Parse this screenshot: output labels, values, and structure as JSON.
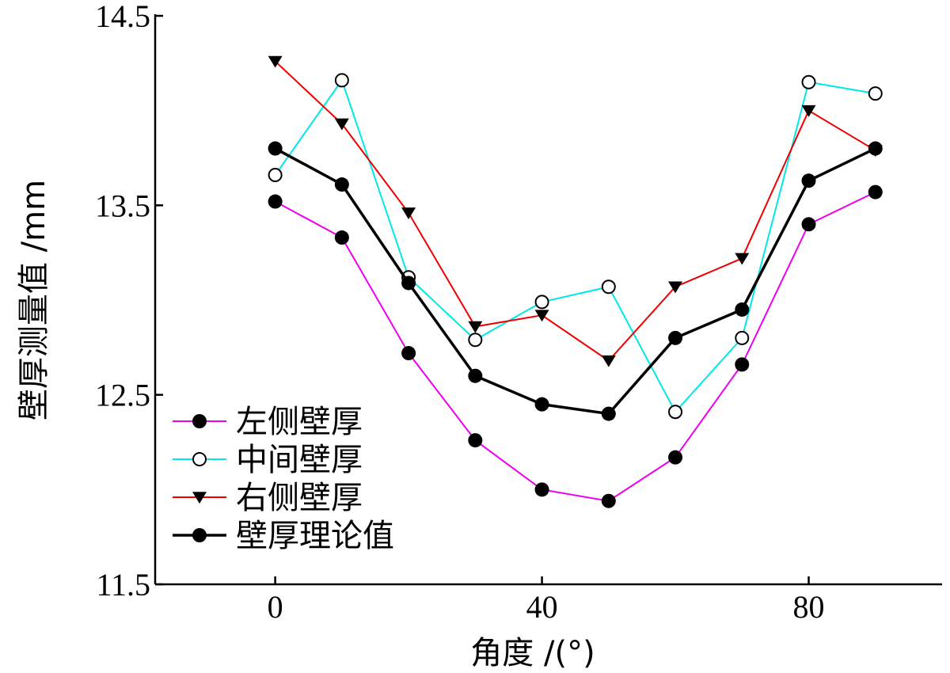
{
  "chart_data": {
    "type": "line",
    "xlabel": "角度 /(°)",
    "ylabel": "壁厚测量值 /mm",
    "xlim": [
      -18,
      100
    ],
    "ylim": [
      11.5,
      14.5
    ],
    "xticks": [
      0,
      40,
      80
    ],
    "xtick_labels": [
      "0",
      "40",
      "80"
    ],
    "yticks": [
      11.5,
      12.5,
      13.5,
      14.5
    ],
    "ytick_labels": [
      "11.5",
      "12.5",
      "13.5",
      "14.5"
    ],
    "x": [
      0,
      10,
      20,
      30,
      40,
      50,
      60,
      70,
      80,
      90
    ],
    "series": [
      {
        "name": "左侧壁厚",
        "color": "#ee00ee",
        "marker": "filled-circle",
        "values": [
          13.52,
          13.33,
          12.72,
          12.26,
          12.0,
          11.94,
          12.17,
          12.66,
          13.4,
          13.57
        ]
      },
      {
        "name": "中间壁厚",
        "color": "#00e8e8",
        "marker": "open-circle",
        "values": [
          13.66,
          14.16,
          13.12,
          12.79,
          12.99,
          13.07,
          12.41,
          12.8,
          14.15,
          14.09
        ]
      },
      {
        "name": "右侧壁厚",
        "color": "#ee0000",
        "marker": "down-triangle",
        "values": [
          14.26,
          13.93,
          13.46,
          12.86,
          12.92,
          12.68,
          13.07,
          13.22,
          14.0,
          13.79
        ]
      },
      {
        "name": "壁厚理论值",
        "color": "#000000",
        "marker": "filled-circle",
        "values": [
          13.8,
          13.61,
          13.09,
          12.6,
          12.45,
          12.4,
          12.8,
          12.95,
          13.63,
          13.8
        ]
      }
    ],
    "legend_position": "bottom-left",
    "grid": false
  }
}
